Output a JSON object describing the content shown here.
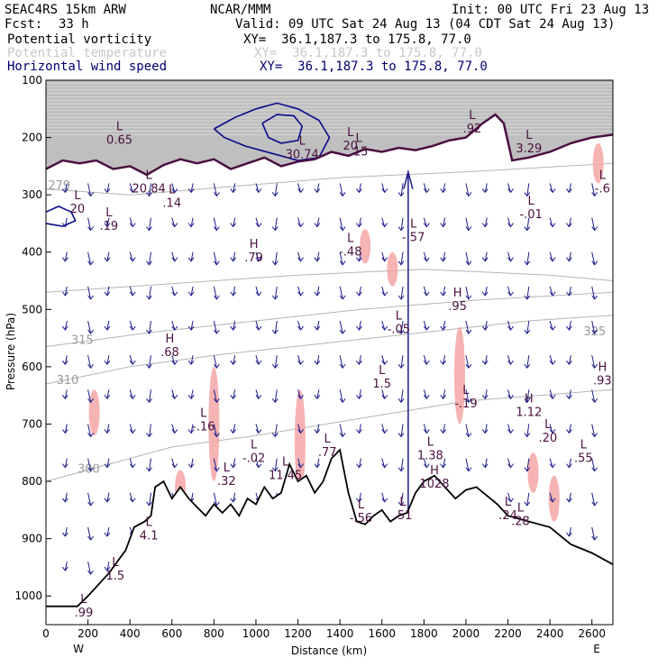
{
  "header": {
    "model": "SEAC4RS 15km ARW",
    "org": "NCAR/MMM",
    "init": "Init: 00 UTC Fri 23 Aug 13",
    "fcst_label": "Fcst:",
    "fcst_value": "33 h",
    "valid": "Valid: 09 UTC Sat 24 Aug 13 (04 CDT Sat 24 Aug 13)"
  },
  "fields": [
    {
      "name": "Potential vorticity",
      "xy": "XY=  36.1,187.3 to 175.8, 77.0",
      "color": "#000000"
    },
    {
      "name": "Potential temperature",
      "xy": "XY=  36.1,187.3 to 175.8, 77.0",
      "color": "#c8c8c8"
    },
    {
      "name": "Horizontal wind speed",
      "xy": "XY=  36.1,187.3 to 175.8, 77.0",
      "color": "#00006e"
    }
  ],
  "chart_data": {
    "type": "cross-section",
    "xlabel": "Distance (km)",
    "ylabel": "Pressure (hPa)",
    "xlim": [
      0,
      2700
    ],
    "ylim": [
      100,
      1050
    ],
    "x_ticks": [
      0,
      200,
      400,
      600,
      800,
      1000,
      1200,
      1400,
      1600,
      1800,
      2000,
      2200,
      2400,
      2600
    ],
    "y_ticks": [
      100,
      200,
      300,
      400,
      500,
      600,
      700,
      800,
      900,
      1000
    ],
    "west_label": "W",
    "east_label": "E",
    "terrain": [
      {
        "x": 0,
        "p": 1018
      },
      {
        "x": 150,
        "p": 1018
      },
      {
        "x": 200,
        "p": 1000
      },
      {
        "x": 300,
        "p": 960
      },
      {
        "x": 380,
        "p": 920
      },
      {
        "x": 420,
        "p": 880
      },
      {
        "x": 470,
        "p": 870
      },
      {
        "x": 500,
        "p": 860
      },
      {
        "x": 520,
        "p": 810
      },
      {
        "x": 560,
        "p": 800
      },
      {
        "x": 600,
        "p": 830
      },
      {
        "x": 640,
        "p": 810
      },
      {
        "x": 680,
        "p": 830
      },
      {
        "x": 720,
        "p": 845
      },
      {
        "x": 760,
        "p": 860
      },
      {
        "x": 800,
        "p": 840
      },
      {
        "x": 840,
        "p": 855
      },
      {
        "x": 880,
        "p": 840
      },
      {
        "x": 920,
        "p": 860
      },
      {
        "x": 960,
        "p": 830
      },
      {
        "x": 1000,
        "p": 840
      },
      {
        "x": 1040,
        "p": 810
      },
      {
        "x": 1080,
        "p": 830
      },
      {
        "x": 1120,
        "p": 820
      },
      {
        "x": 1160,
        "p": 770
      },
      {
        "x": 1200,
        "p": 800
      },
      {
        "x": 1240,
        "p": 790
      },
      {
        "x": 1280,
        "p": 820
      },
      {
        "x": 1320,
        "p": 800
      },
      {
        "x": 1360,
        "p": 760
      },
      {
        "x": 1400,
        "p": 745
      },
      {
        "x": 1440,
        "p": 820
      },
      {
        "x": 1480,
        "p": 870
      },
      {
        "x": 1520,
        "p": 875
      },
      {
        "x": 1560,
        "p": 860
      },
      {
        "x": 1600,
        "p": 850
      },
      {
        "x": 1640,
        "p": 870
      },
      {
        "x": 1680,
        "p": 860
      },
      {
        "x": 1720,
        "p": 855
      },
      {
        "x": 1760,
        "p": 820
      },
      {
        "x": 1800,
        "p": 800
      },
      {
        "x": 1850,
        "p": 790
      },
      {
        "x": 1900,
        "p": 810
      },
      {
        "x": 1950,
        "p": 830
      },
      {
        "x": 2000,
        "p": 815
      },
      {
        "x": 2050,
        "p": 810
      },
      {
        "x": 2100,
        "p": 825
      },
      {
        "x": 2150,
        "p": 840
      },
      {
        "x": 2200,
        "p": 860
      },
      {
        "x": 2300,
        "p": 870
      },
      {
        "x": 2400,
        "p": 880
      },
      {
        "x": 2500,
        "p": 910
      },
      {
        "x": 2600,
        "p": 925
      },
      {
        "x": 2700,
        "p": 945
      }
    ],
    "tropopause_pv": [
      {
        "x": 0,
        "p": 255
      },
      {
        "x": 80,
        "p": 240
      },
      {
        "x": 160,
        "p": 245
      },
      {
        "x": 240,
        "p": 240
      },
      {
        "x": 320,
        "p": 255
      },
      {
        "x": 400,
        "p": 250
      },
      {
        "x": 480,
        "p": 265
      },
      {
        "x": 560,
        "p": 248
      },
      {
        "x": 640,
        "p": 238
      },
      {
        "x": 720,
        "p": 245
      },
      {
        "x": 800,
        "p": 238
      },
      {
        "x": 880,
        "p": 255
      },
      {
        "x": 960,
        "p": 245
      },
      {
        "x": 1040,
        "p": 235
      },
      {
        "x": 1120,
        "p": 250
      },
      {
        "x": 1200,
        "p": 242
      },
      {
        "x": 1280,
        "p": 238
      },
      {
        "x": 1360,
        "p": 225
      },
      {
        "x": 1440,
        "p": 232
      },
      {
        "x": 1520,
        "p": 220
      },
      {
        "x": 1600,
        "p": 225
      },
      {
        "x": 1680,
        "p": 218
      },
      {
        "x": 1760,
        "p": 222
      },
      {
        "x": 1840,
        "p": 215
      },
      {
        "x": 1920,
        "p": 205
      },
      {
        "x": 2000,
        "p": 200
      },
      {
        "x": 2080,
        "p": 175
      },
      {
        "x": 2140,
        "p": 160
      },
      {
        "x": 2180,
        "p": 175
      },
      {
        "x": 2220,
        "p": 240
      },
      {
        "x": 2300,
        "p": 235
      },
      {
        "x": 2400,
        "p": 225
      },
      {
        "x": 2500,
        "p": 210
      },
      {
        "x": 2600,
        "p": 200
      },
      {
        "x": 2700,
        "p": 195
      }
    ],
    "theta_isentropes": [
      {
        "label": "279",
        "x_label": 10,
        "p_label": 290,
        "points": [
          [
            0,
            290
          ],
          [
            400,
            300
          ],
          [
            900,
            285
          ],
          [
            1400,
            270
          ],
          [
            2000,
            260
          ],
          [
            2700,
            245
          ]
        ]
      },
      {
        "label": "300",
        "x_label": 150,
        "p_label": 785,
        "points": [
          [
            0,
            800
          ],
          [
            300,
            770
          ],
          [
            600,
            740
          ],
          [
            1000,
            720
          ],
          [
            1500,
            690
          ],
          [
            2000,
            660
          ],
          [
            2700,
            640
          ]
        ]
      },
      {
        "label": "310",
        "x_label": 50,
        "p_label": 630,
        "points": [
          [
            0,
            630
          ],
          [
            400,
            600
          ],
          [
            800,
            580
          ],
          [
            1300,
            560
          ],
          [
            1800,
            540
          ],
          [
            2300,
            520
          ],
          [
            2700,
            510
          ]
        ]
      },
      {
        "label": "315",
        "x_label": 120,
        "p_label": 560,
        "points": [
          [
            0,
            565
          ],
          [
            500,
            540
          ],
          [
            1000,
            520
          ],
          [
            1500,
            500
          ],
          [
            2000,
            485
          ],
          [
            2700,
            470
          ]
        ]
      },
      {
        "label": "325",
        "x_label": 2560,
        "p_label": 545,
        "points": [
          [
            0,
            470
          ],
          [
            600,
            455
          ],
          [
            1200,
            440
          ],
          [
            1800,
            430
          ],
          [
            2400,
            440
          ],
          [
            2700,
            450
          ]
        ]
      }
    ],
    "wind_speed_contours": [
      {
        "name": "jet-core",
        "points": [
          [
            800,
            185
          ],
          [
            900,
            165
          ],
          [
            1000,
            150
          ],
          [
            1100,
            140
          ],
          [
            1200,
            150
          ],
          [
            1300,
            170
          ],
          [
            1350,
            200
          ],
          [
            1300,
            235
          ],
          [
            1200,
            240
          ],
          [
            1100,
            230
          ],
          [
            950,
            215
          ],
          [
            850,
            200
          ],
          [
            800,
            185
          ]
        ]
      },
      {
        "name": "inner-core",
        "points": [
          [
            1030,
            175
          ],
          [
            1100,
            160
          ],
          [
            1180,
            162
          ],
          [
            1220,
            180
          ],
          [
            1200,
            205
          ],
          [
            1120,
            210
          ],
          [
            1060,
            200
          ],
          [
            1030,
            175
          ]
        ]
      },
      {
        "name": "west-max",
        "points": [
          [
            0,
            330
          ],
          [
            60,
            320
          ],
          [
            120,
            330
          ],
          [
            140,
            345
          ],
          [
            80,
            355
          ],
          [
            0,
            350
          ]
        ]
      }
    ],
    "pv_anomalies_pink": [
      {
        "x": 1520,
        "p_top": 360,
        "p_bot": 420
      },
      {
        "x": 800,
        "p_top": 600,
        "p_bot": 800
      },
      {
        "x": 1650,
        "p_top": 400,
        "p_bot": 460
      },
      {
        "x": 1970,
        "p_top": 530,
        "p_bot": 700
      },
      {
        "x": 2630,
        "p_top": 210,
        "p_bot": 280
      },
      {
        "x": 2420,
        "p_top": 790,
        "p_bot": 870
      },
      {
        "x": 1210,
        "p_top": 640,
        "p_bot": 820
      },
      {
        "x": 640,
        "p_top": 780,
        "p_bot": 840
      },
      {
        "x": 230,
        "p_top": 640,
        "p_bot": 720
      },
      {
        "x": 2320,
        "p_top": 750,
        "p_bot": 820
      }
    ],
    "extrema": [
      {
        "type": "L",
        "value": "0.65",
        "x": 350,
        "p": 200
      },
      {
        "type": "L",
        "value": "20.84",
        "x": 490,
        "p": 285
      },
      {
        "type": "L",
        "value": "30.74",
        "x": 1220,
        "p": 225
      },
      {
        "type": "L",
        "value": "20",
        "x": 1450,
        "p": 210
      },
      {
        "type": "L",
        "value": ".15",
        "x": 1490,
        "p": 220
      },
      {
        "type": "L",
        "value": ".92",
        "x": 2030,
        "p": 180
      },
      {
        "type": "L",
        "value": "3.29",
        "x": 2300,
        "p": 215
      },
      {
        "type": "L",
        "value": "-.6",
        "x": 2650,
        "p": 285
      },
      {
        "type": "L",
        "value": "20",
        "x": 150,
        "p": 320
      },
      {
        "type": "L",
        "value": ".19",
        "x": 300,
        "p": 350
      },
      {
        "type": "L",
        "value": ".14",
        "x": 600,
        "p": 310
      },
      {
        "type": "H",
        "value": ".79",
        "x": 990,
        "p": 405
      },
      {
        "type": "L",
        "value": "-.48",
        "x": 1450,
        "p": 395
      },
      {
        "type": "L",
        "value": "-.57",
        "x": 1750,
        "p": 370
      },
      {
        "type": "L",
        "value": "-.01",
        "x": 2310,
        "p": 330
      },
      {
        "type": "H",
        "value": ".95",
        "x": 1960,
        "p": 490
      },
      {
        "type": "L",
        "value": "-.05",
        "x": 1680,
        "p": 530
      },
      {
        "type": "H",
        "value": ".68",
        "x": 590,
        "p": 570
      },
      {
        "type": "L",
        "value": "1.5",
        "x": 1600,
        "p": 625
      },
      {
        "type": "H",
        "value": ".93",
        "x": 2650,
        "p": 620
      },
      {
        "type": "L",
        "value": "-.19",
        "x": 2000,
        "p": 660
      },
      {
        "type": "H",
        "value": "1.12",
        "x": 2300,
        "p": 675
      },
      {
        "type": "L",
        "value": "-.16",
        "x": 750,
        "p": 700
      },
      {
        "type": "L",
        "value": ".20",
        "x": 2390,
        "p": 720
      },
      {
        "type": "L",
        "value": ".55",
        "x": 2560,
        "p": 755
      },
      {
        "type": "L",
        "value": "-.02",
        "x": 990,
        "p": 755
      },
      {
        "type": "L",
        "value": "1.38",
        "x": 1830,
        "p": 750
      },
      {
        "type": "L",
        "value": ".77",
        "x": 1340,
        "p": 745
      },
      {
        "type": "L",
        "value": "11.45",
        "x": 1140,
        "p": 785
      },
      {
        "type": "L",
        "value": ".32",
        "x": 860,
        "p": 795
      },
      {
        "type": "H",
        "value": "1028",
        "x": 1850,
        "p": 800
      },
      {
        "type": "L",
        "value": "-.56",
        "x": 1500,
        "p": 860
      },
      {
        "type": "L",
        "value": ".51",
        "x": 1700,
        "p": 855
      },
      {
        "type": "L",
        "value": ".24",
        "x": 2200,
        "p": 855
      },
      {
        "type": "L",
        "value": ".28",
        "x": 2260,
        "p": 865
      },
      {
        "type": "L",
        "value": "4.1",
        "x": 490,
        "p": 890
      },
      {
        "type": "L",
        "value": "1.5",
        "x": 330,
        "p": 960
      },
      {
        "type": "L",
        "value": ".99",
        "x": 180,
        "p": 1025
      }
    ]
  }
}
